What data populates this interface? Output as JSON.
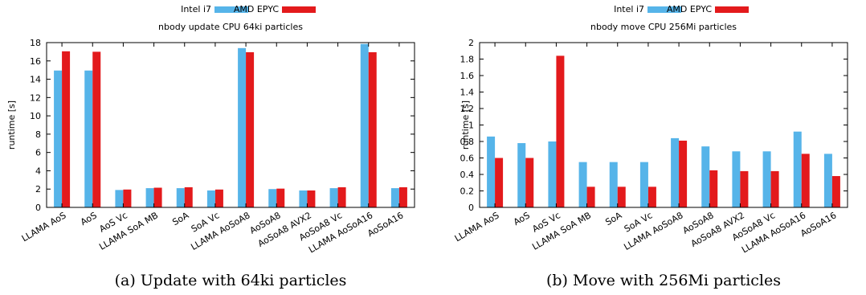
{
  "colors": {
    "intel": "#56b4e9",
    "amd": "#e31a1c"
  },
  "chart_data": [
    {
      "type": "bar",
      "title": "nbody update CPU 64ki particles",
      "xlabel": "",
      "ylabel": "runtime [s]",
      "ylim": [
        0,
        18
      ],
      "yticks": [
        "0",
        "2",
        "4",
        "6",
        "8",
        "10",
        "12",
        "14",
        "16",
        "18"
      ],
      "legend_position": "top",
      "categories": [
        "LLAMA AoS",
        "AoS",
        "AoS Vc",
        "LLAMA SoA MB",
        "SoA",
        "SoA Vc",
        "LLAMA AoSoA8",
        "AoSoA8",
        "AoSoA8 AVX2",
        "AoSoA8 Vc",
        "LLAMA AoSoA16",
        "AoSoA16"
      ],
      "series": [
        {
          "name": "Intel i7",
          "values": [
            14.95,
            14.95,
            1.9,
            2.1,
            2.1,
            1.85,
            17.4,
            2.0,
            1.85,
            2.1,
            17.85,
            2.1
          ]
        },
        {
          "name": "AMD EPYC",
          "values": [
            17.05,
            17.0,
            1.95,
            2.15,
            2.2,
            1.95,
            16.95,
            2.05,
            1.85,
            2.2,
            16.95,
            2.2
          ]
        }
      ],
      "caption": "(a) Update with 64ki particles"
    },
    {
      "type": "bar",
      "title": "nbody move CPU 256Mi particles",
      "xlabel": "",
      "ylabel": "runtime [s]",
      "ylim": [
        0,
        2
      ],
      "yticks": [
        "0",
        "0.2",
        "0.4",
        "0.6",
        "0.8",
        "1",
        "1.2",
        "1.4",
        "1.6",
        "1.8",
        "2"
      ],
      "legend_position": "top",
      "categories": [
        "LLAMA AoS",
        "AoS",
        "AoS Vc",
        "LLAMA SoA MB",
        "SoA",
        "SoA Vc",
        "LLAMA AoSoA8",
        "AoSoA8",
        "AoSoA8 AVX2",
        "AoSoA8 Vc",
        "LLAMA AoSoA16",
        "AoSoA16"
      ],
      "series": [
        {
          "name": "Intel i7",
          "values": [
            0.86,
            0.78,
            0.8,
            0.55,
            0.55,
            0.55,
            0.84,
            0.74,
            0.68,
            0.68,
            0.92,
            0.65
          ]
        },
        {
          "name": "AMD EPYC",
          "values": [
            0.6,
            0.6,
            1.84,
            0.25,
            0.25,
            0.25,
            0.81,
            0.45,
            0.44,
            0.44,
            0.65,
            0.38
          ]
        }
      ],
      "caption": "(b) Move with 256Mi particles"
    }
  ]
}
